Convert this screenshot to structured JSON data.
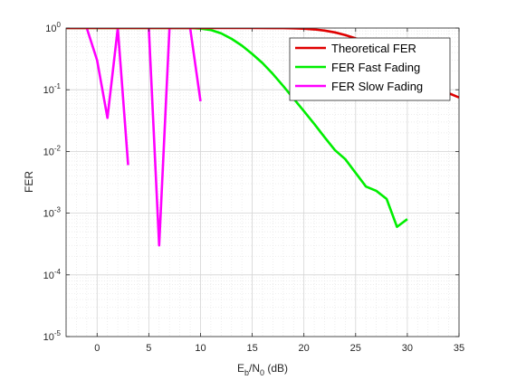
{
  "chart_data": {
    "type": "line",
    "xlabel": {
      "main": "E",
      "sub1": "b",
      "mid": "/N",
      "sub2": "0",
      "tail": " (dB)"
    },
    "ylabel": "FER",
    "xlim": [
      -3,
      35
    ],
    "ylim": [
      1e-05,
      1
    ],
    "yscale": "log",
    "x_ticks": [
      0,
      5,
      10,
      15,
      20,
      25,
      30,
      35
    ],
    "y_ticks": [
      {
        "value": 1,
        "base": "10",
        "exp": "0"
      },
      {
        "value": 0.1,
        "base": "10",
        "exp": "-1"
      },
      {
        "value": 0.01,
        "base": "10",
        "exp": "-2"
      },
      {
        "value": 0.001,
        "base": "10",
        "exp": "-3"
      },
      {
        "value": 0.0001,
        "base": "10",
        "exp": "-4"
      },
      {
        "value": 1e-05,
        "base": "10",
        "exp": "-5"
      }
    ],
    "grid": true,
    "minor_grid": true,
    "legend_position": "top-right",
    "series": [
      {
        "name": "Theoretical FER",
        "color": "#e00000",
        "x": [
          -3,
          5,
          10,
          15,
          17,
          18,
          19,
          20,
          21,
          22,
          23,
          24,
          25,
          26,
          27,
          28,
          29,
          30,
          31,
          32,
          33,
          34,
          35
        ],
        "y": [
          1,
          1,
          1,
          1,
          0.999,
          0.996,
          0.99,
          0.975,
          0.95,
          0.91,
          0.85,
          0.77,
          0.68,
          0.58,
          0.48,
          0.38,
          0.3,
          0.23,
          0.17,
          0.13,
          0.1,
          0.088,
          0.075
        ]
      },
      {
        "name": "FER Fast Fading",
        "color": "#00ee00",
        "x": [
          -3,
          9,
          10,
          11,
          12,
          13,
          14,
          15,
          16,
          17,
          18,
          19,
          20,
          21,
          22,
          23,
          24,
          25,
          26,
          27,
          28,
          29,
          30
        ],
        "y": [
          1,
          1,
          0.98,
          0.93,
          0.82,
          0.67,
          0.52,
          0.38,
          0.27,
          0.18,
          0.115,
          0.072,
          0.045,
          0.028,
          0.017,
          0.0105,
          0.0075,
          0.0045,
          0.0027,
          0.0023,
          0.0017,
          0.0006,
          0.0008
        ]
      },
      {
        "name": "FER Slow Fading",
        "color": "#ff00ff",
        "segments": [
          {
            "x": [
              -3,
              -1,
              0,
              1,
              2,
              3
            ],
            "y": [
              1,
              1,
              0.3,
              0.035,
              1,
              0.006
            ]
          },
          {
            "x": [
              5,
              6,
              7,
              8,
              9,
              10
            ],
            "y": [
              1,
              0.0003,
              1,
              1,
              1,
              0.065
            ]
          }
        ]
      }
    ]
  }
}
